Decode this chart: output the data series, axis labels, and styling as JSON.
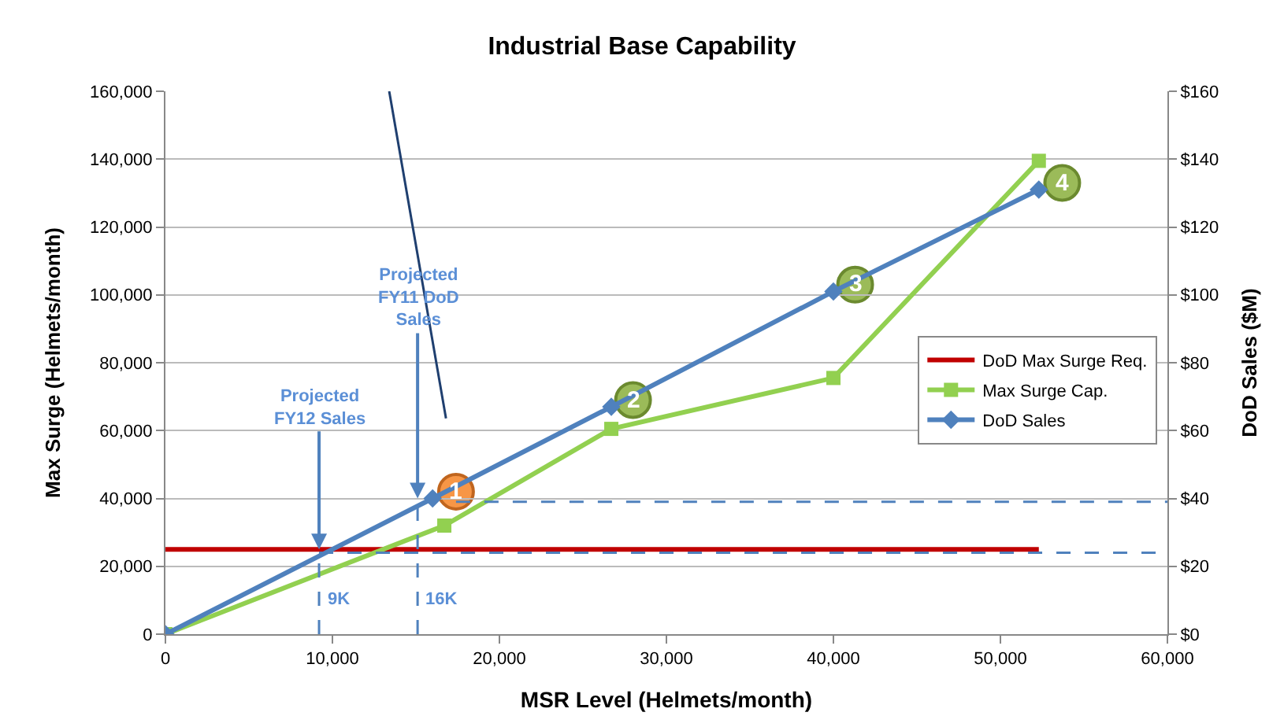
{
  "chart_data": {
    "type": "line",
    "title": "Industrial Base Capability",
    "xlabel": "MSR Level (Helmets/month)",
    "ylabel": "Max Surge (Helmets/month)",
    "y2label": "DoD Sales ($M)",
    "xlim": [
      0,
      60000
    ],
    "xticks": [
      0,
      {
        "value": 10000,
        "label": "10,000"
      },
      {
        "value": 20000,
        "label": "20,000"
      },
      {
        "value": 30000,
        "label": "30,000"
      },
      {
        "value": 40000,
        "label": "40,000"
      },
      {
        "value": 50000,
        "label": "50,000"
      },
      {
        "value": 60000,
        "label": "60,000"
      }
    ],
    "ylim": [
      0,
      160000
    ],
    "yticks": [
      0,
      {
        "value": 20000,
        "label": "20,000"
      },
      {
        "value": 40000,
        "label": "40,000"
      },
      {
        "value": 60000,
        "label": "60,000"
      },
      {
        "value": 80000,
        "label": "80,000"
      },
      {
        "value": 100000,
        "label": "100,000"
      },
      {
        "value": 120000,
        "label": "120,000"
      },
      {
        "value": 140000,
        "label": "140,000"
      },
      {
        "value": 160000,
        "label": "160,000"
      }
    ],
    "y2lim": [
      0,
      160
    ],
    "y2ticks": [
      {
        "value": 0,
        "label": "$0"
      },
      {
        "value": 20,
        "label": "$20"
      },
      {
        "value": 40,
        "label": "$40"
      },
      {
        "value": 60,
        "label": "$60"
      },
      {
        "value": 80,
        "label": "$80"
      },
      {
        "value": 100,
        "label": "$100"
      },
      {
        "value": 120,
        "label": "$120"
      },
      {
        "value": 140,
        "label": "$140"
      },
      {
        "value": 160,
        "label": "$160"
      }
    ],
    "grid": "y",
    "legend": "right",
    "series": [
      {
        "name": "DoD Max Surge Req.",
        "color": "#c00000",
        "x": [
          0,
          52300
        ],
        "values": [
          25000,
          25000
        ],
        "marker": "none"
      },
      {
        "name": "Max Surge Cap.",
        "color": "#92d050",
        "x": [
          0,
          16700,
          26700,
          40000,
          52300
        ],
        "values": [
          0,
          32000,
          60500,
          75500,
          139500
        ],
        "marker": "square"
      },
      {
        "name": "DoD Sales",
        "color": "#4f81bd",
        "axis": "y2",
        "x": [
          0,
          16000,
          26700,
          40000,
          52300
        ],
        "values": [
          0,
          40,
          67,
          101,
          131
        ],
        "marker": "diamond"
      },
      {
        "color": "#4f81bd",
        "x": [
          17400,
          60000
        ],
        "values": [
          39000,
          39000
        ],
        "marker": "none",
        "line_style": "dashed"
      },
      {
        "color": "#1f3f6f",
        "x": [
          13400,
          16800
        ],
        "values": [
          160000,
          63600
        ],
        "marker": "none",
        "line_style": "solid"
      },
      {
        "color": "#4f81bd",
        "x": [
          9200,
          60000
        ],
        "values": [
          24000,
          24000
        ],
        "marker": "none",
        "line_style": "dashed"
      },
      {
        "color": "#4f81bd",
        "x": [
          9200,
          9200
        ],
        "values": [
          0,
          24000
        ],
        "marker": "none",
        "line_style": "dashed"
      },
      {
        "color": "#4f81bd",
        "x": [
          15100,
          15100
        ],
        "values": [
          0,
          40000
        ],
        "marker": "none",
        "line_style": "dashed"
      }
    ],
    "annotations": [
      {
        "text": "Projected FY12 Sales",
        "x": 9200,
        "y": 25000
      },
      {
        "text": "Projected FY11 DoD Sales",
        "x": 15100,
        "y": 40000
      },
      {
        "text": "9K",
        "x": 9200,
        "y": 10000
      },
      {
        "text": "16K",
        "x": 15100,
        "y": 10000
      },
      {
        "text": "1",
        "x": 17400,
        "y": 42000
      },
      {
        "text": "2",
        "x": 28000,
        "y": 69000
      },
      {
        "text": "3",
        "x": 41300,
        "y": 103000
      },
      {
        "text": "4",
        "x": 53700,
        "y": 133000
      }
    ]
  }
}
